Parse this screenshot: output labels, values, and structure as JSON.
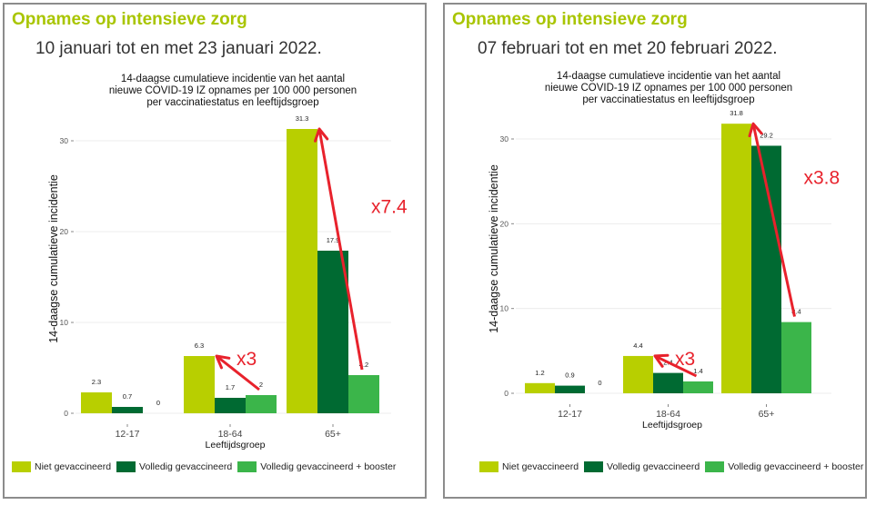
{
  "colors": {
    "title": "#a9c500",
    "annotation": "#e8222c",
    "series": [
      "#b8cf00",
      "#006a32",
      "#3bb54a"
    ]
  },
  "legend": [
    "Niet gevaccineerd",
    "Volledig gevaccineerd",
    "Volledig gevaccineerd + booster"
  ],
  "panels": [
    {
      "title": "Opnames op intensieve zorg",
      "date_range": "10 januari tot en met 23 januari 2022.",
      "annotations": [
        {
          "label": "x3",
          "from": [
            2,
            1
          ],
          "to": [
            0,
            1
          ]
        },
        {
          "label": "x7.4",
          "from": [
            2,
            2
          ],
          "to": [
            0,
            2
          ]
        }
      ]
    },
    {
      "title": "Opnames op intensieve zorg",
      "date_range": "07 februari tot en met 20 februari 2022.",
      "annotations": [
        {
          "label": "x3",
          "from": [
            2,
            1
          ],
          "to": [
            0,
            1
          ]
        },
        {
          "label": "x3.8",
          "from": [
            2,
            2
          ],
          "to": [
            0,
            2
          ]
        }
      ]
    }
  ],
  "chart_data": [
    {
      "type": "bar",
      "title": "14-daagse cumulatieve incidentie van het aantal nieuwe COVID-19 IZ opnames per 100 000 personen per vaccinatiestatus en leeftijdsgroep",
      "title_lines": [
        "14-daagse cumulatieve incidentie van het aantal",
        "nieuwe COVID-19 IZ opnames per 100 000 personen",
        "per vaccinatiestatus en leeftijdsgroep"
      ],
      "xlabel": "Leeftijdsgroep",
      "ylabel": "14-daagse cumulatieve incidentie",
      "categories": [
        "12-17",
        "18-64",
        "65+"
      ],
      "ylim": [
        0,
        33
      ],
      "yticks": [
        0,
        10,
        20,
        30
      ],
      "grid": true,
      "legend_position": "bottom",
      "series": [
        {
          "name": "Niet gevaccineerd",
          "values": [
            2.3,
            6.3,
            31.3
          ]
        },
        {
          "name": "Volledig gevaccineerd",
          "values": [
            0.7,
            1.7,
            17.9
          ]
        },
        {
          "name": "Volledig gevaccineerd + booster",
          "values": [
            0,
            2,
            4.2
          ]
        }
      ]
    },
    {
      "type": "bar",
      "title": "14-daagse cumulatieve incidentie van het aantal nieuwe COVID-19 IZ opnames per 100 000 personen per vaccinatiestatus en leeftijdsgroep",
      "title_lines": [
        "14-daagse cumulatieve incidentie van het aantal",
        "nieuwe COVID-19 IZ opnames per 100 000 personen",
        "per vaccinatiestatus en leeftijdsgroep"
      ],
      "xlabel": "Leeftijdsgroep",
      "ylabel": "14-daagse cumulatieve incidentie",
      "categories": [
        "12-17",
        "18-64",
        "65+"
      ],
      "ylim": [
        0,
        33
      ],
      "yticks": [
        0,
        10,
        20,
        30
      ],
      "grid": true,
      "legend_position": "bottom",
      "series": [
        {
          "name": "Niet gevaccineerd",
          "values": [
            1.2,
            4.4,
            31.8
          ]
        },
        {
          "name": "Volledig gevaccineerd",
          "values": [
            0.9,
            2.4,
            29.2
          ]
        },
        {
          "name": "Volledig gevaccineerd + booster",
          "values": [
            0,
            1.4,
            8.4
          ]
        }
      ]
    }
  ]
}
